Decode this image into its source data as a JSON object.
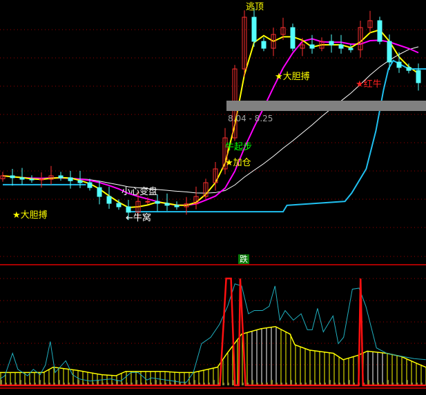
{
  "chart_data": {
    "type": "candlestick",
    "title": "",
    "colors": {
      "up": "#ff3030",
      "down": "#54ffff",
      "ma_fast": "#ffff00",
      "ma_mid": "#ff00ff",
      "ma_slow": "#ffffff",
      "support": "#20c0f0",
      "grid": "#a00000"
    },
    "price_panel": {
      "open": [
        6.66,
        6.72,
        6.68,
        6.65,
        6.64,
        6.65,
        6.72,
        6.68,
        6.62,
        6.58,
        6.48,
        6.3,
        6.16,
        6.09,
        5.98,
        6.2,
        6.2,
        6.16,
        6.12,
        6.09,
        6.15,
        6.3,
        6.58,
        6.86,
        7.49,
        8.89,
        9.94,
        9.45,
        9.31,
        9.59,
        9.73,
        9.31,
        9.38,
        9.31,
        9.45,
        9.38,
        9.31,
        9.28,
        9.73,
        9.87,
        9.45,
        9.03,
        8.92,
        8.86
      ],
      "close": [
        6.72,
        6.68,
        6.65,
        6.64,
        6.65,
        6.72,
        6.68,
        6.62,
        6.58,
        6.48,
        6.3,
        6.16,
        6.09,
        5.98,
        6.2,
        6.2,
        6.16,
        6.12,
        6.09,
        6.15,
        6.3,
        6.58,
        6.86,
        7.49,
        8.89,
        9.94,
        9.45,
        9.31,
        9.59,
        9.73,
        9.31,
        9.38,
        9.31,
        9.45,
        9.38,
        9.31,
        9.28,
        9.73,
        9.87,
        9.45,
        9.03,
        8.92,
        8.86,
        8.61
      ],
      "support_line": [
        [
          0,
          6.54
        ],
        [
          8.6,
          6.54
        ],
        [
          8.6,
          null
        ],
        [
          12.9,
          5.99
        ],
        [
          29,
          5.99
        ],
        [
          29.4,
          6.12
        ],
        [
          35.4,
          6.2
        ],
        [
          36.1,
          6.37
        ],
        [
          37.6,
          6.86
        ],
        [
          38.6,
          7.63
        ],
        [
          39.4,
          8.47
        ],
        [
          39.9,
          8.89
        ],
        [
          40.4,
          9.06
        ],
        [
          42,
          8.89
        ],
        [
          43.8,
          8.89
        ]
      ],
      "price_range": {
        "low": 8.04,
        "high": 8.25,
        "label": "8.04 - 8.25"
      },
      "ylim": [
        5.95,
        10.29
      ]
    },
    "annotations": [
      {
        "text": "逃顶",
        "color": "#ffff00",
        "star": false
      },
      {
        "text": "大胆搏",
        "color": "#ffff00",
        "star": true
      },
      {
        "text": "大胆搏",
        "color": "#ffff00",
        "star": true
      },
      {
        "text": "红牛",
        "color": "#ff2020",
        "star": true
      },
      {
        "text": "牛起步",
        "color": "#00ff00",
        "star": false
      },
      {
        "text": "加仓",
        "color": "#ffff00",
        "star": true
      },
      {
        "text": "小心变盘",
        "color": "#ffffff",
        "star": false
      },
      {
        "text": "←牛窝",
        "color": "#ffffff",
        "star": false
      }
    ],
    "signal_label": "跌",
    "indicator_panel": {
      "ylim": [
        0,
        100
      ],
      "cyan": [
        [
          0,
          6
        ],
        [
          1,
          9
        ],
        [
          2.6,
          30
        ],
        [
          3.7,
          15
        ],
        [
          5.7,
          9
        ],
        [
          6.9,
          15
        ],
        [
          8.3,
          10
        ],
        [
          9.4,
          19
        ],
        [
          10.4,
          41
        ],
        [
          11.4,
          12
        ],
        [
          13.6,
          23
        ],
        [
          15,
          10
        ],
        [
          16.4,
          6
        ],
        [
          18.6,
          4
        ],
        [
          22.9,
          6
        ],
        [
          25,
          4
        ],
        [
          27.1,
          12
        ],
        [
          28.6,
          12
        ],
        [
          30.4,
          5
        ],
        [
          31.4,
          7
        ],
        [
          34.3,
          5
        ],
        [
          37.4,
          3
        ],
        [
          38.6,
          3
        ],
        [
          40,
          12
        ],
        [
          41.7,
          39
        ],
        [
          43.6,
          45
        ],
        [
          45.4,
          57
        ],
        [
          47.1,
          74
        ],
        [
          48.6,
          95
        ],
        [
          50,
          93
        ],
        [
          51.4,
          67
        ],
        [
          52.6,
          70
        ],
        [
          54.3,
          70
        ],
        [
          55.7,
          74
        ],
        [
          56.9,
          93
        ],
        [
          57.9,
          61
        ],
        [
          59,
          70
        ],
        [
          60.7,
          61
        ],
        [
          62.3,
          67
        ],
        [
          63.6,
          52
        ],
        [
          64.6,
          52
        ],
        [
          65.7,
          72
        ],
        [
          66.9,
          50
        ],
        [
          68.9,
          65
        ],
        [
          70,
          39
        ],
        [
          71.1,
          45
        ],
        [
          72.9,
          90
        ],
        [
          74.3,
          91
        ],
        [
          75.7,
          74
        ],
        [
          77.9,
          35
        ],
        [
          80,
          30
        ],
        [
          82.1,
          28
        ],
        [
          85.7,
          25
        ],
        [
          88.1,
          24
        ]
      ],
      "yellow": [
        [
          0,
          12
        ],
        [
          9,
          12
        ],
        [
          11,
          17
        ],
        [
          16,
          14
        ],
        [
          21,
          10
        ],
        [
          24,
          9
        ],
        [
          26,
          13
        ],
        [
          34,
          13
        ],
        [
          37,
          12
        ],
        [
          40,
          12
        ],
        [
          43,
          15
        ],
        [
          45,
          17
        ],
        [
          47,
          30
        ],
        [
          50,
          48
        ],
        [
          54,
          53
        ],
        [
          57,
          55
        ],
        [
          60,
          48
        ],
        [
          61,
          38
        ],
        [
          64,
          33
        ],
        [
          69,
          30
        ],
        [
          71,
          24
        ],
        [
          74,
          28
        ],
        [
          76,
          32
        ],
        [
          80,
          30
        ],
        [
          83,
          27
        ],
        [
          86,
          21
        ],
        [
          88.1,
          17
        ]
      ],
      "red": [
        [
          0,
          0
        ],
        [
          45.5,
          0
        ],
        [
          46.8,
          100
        ],
        [
          47.8,
          100
        ],
        [
          48.6,
          0
        ],
        [
          49.4,
          0
        ],
        [
          49.7,
          100
        ],
        [
          50.8,
          0
        ],
        [
          74.2,
          0
        ],
        [
          74.6,
          100
        ],
        [
          75.1,
          0
        ],
        [
          88.1,
          0
        ]
      ]
    }
  }
}
